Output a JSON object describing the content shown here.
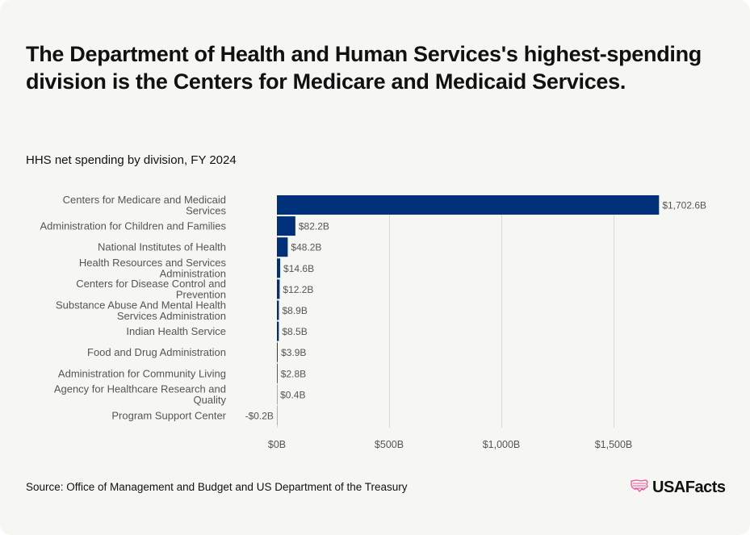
{
  "header": {
    "title": "The Department of Health and Human Services's highest-spending division is the Centers for Medicare and Medicaid Services.",
    "subtitle": "HHS net spending by division, FY 2024"
  },
  "footer": {
    "source": "Source: Office of Management and Budget and US Department of the Treasury",
    "brand": "USAFacts",
    "brand_icon": "us-map-flag-icon"
  },
  "colors": {
    "bar": "#00307a",
    "brand_accent": "#e8559a",
    "background": "#f6f6f2"
  },
  "chart_data": {
    "type": "bar",
    "orientation": "horizontal",
    "title": "HHS net spending by division, FY 2024",
    "xlabel": "",
    "ylabel": "",
    "unit": "billions USD",
    "xlim": [
      0,
      1702.6
    ],
    "grid": true,
    "x_ticks": [
      0,
      500,
      1000,
      1500
    ],
    "x_tick_labels": [
      "$0B",
      "$500B",
      "$1,000B",
      "$1,500B"
    ],
    "categories": [
      [
        "Centers for Medicare and Medicaid",
        "Services"
      ],
      [
        "Administration for Children and Families"
      ],
      [
        "National Institutes of Health"
      ],
      [
        "Health Resources and Services",
        "Administration"
      ],
      [
        "Centers for Disease Control and",
        "Prevention"
      ],
      [
        "Substance Abuse And Mental Health",
        "Services Administration"
      ],
      [
        "Indian Health Service"
      ],
      [
        "Food and Drug Administration"
      ],
      [
        "Administration for Community Living"
      ],
      [
        "Agency for Healthcare Research and",
        "Quality"
      ],
      [
        "Program Support Center"
      ]
    ],
    "values": [
      1702.6,
      82.2,
      48.2,
      14.6,
      12.2,
      8.9,
      8.5,
      3.9,
      2.8,
      0.4,
      -0.2
    ],
    "value_labels": [
      "$1,702.6B",
      "$82.2B",
      "$48.2B",
      "$14.6B",
      "$12.2B",
      "$8.9B",
      "$8.5B",
      "$3.9B",
      "$2.8B",
      "$0.4B",
      "-$0.2B"
    ]
  }
}
